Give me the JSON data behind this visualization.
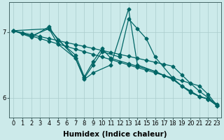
{
  "xlabel": "Humidex (Indice chaleur)",
  "ylabel": "",
  "bg_color": "#cceaea",
  "line_color": "#006666",
  "xlim": [
    -0.5,
    23.5
  ],
  "ylim": [
    5.7,
    7.45
  ],
  "yticks": [
    6,
    7
  ],
  "xticks": [
    0,
    1,
    2,
    3,
    4,
    5,
    6,
    7,
    8,
    9,
    10,
    11,
    12,
    13,
    14,
    15,
    16,
    17,
    18,
    19,
    20,
    21,
    22,
    23
  ],
  "lines": [
    {
      "x": [
        0,
        1,
        2,
        3,
        4,
        5,
        6,
        7,
        8,
        9,
        10,
        11,
        12,
        13,
        14,
        15,
        16,
        17,
        18,
        19,
        20,
        21,
        22,
        23
      ],
      "y": [
        7.02,
        6.98,
        6.94,
        6.9,
        6.86,
        6.82,
        6.78,
        6.74,
        6.7,
        6.66,
        6.62,
        6.58,
        6.54,
        6.5,
        6.46,
        6.42,
        6.38,
        6.34,
        6.3,
        6.26,
        6.22,
        6.18,
        6.05,
        5.88
      ]
    },
    {
      "x": [
        0,
        1,
        2,
        3,
        4,
        5,
        6,
        7,
        8,
        9,
        10,
        11,
        12,
        13,
        14,
        15,
        16,
        17,
        18,
        19,
        20,
        21,
        22,
        23
      ],
      "y": [
        7.02,
        6.99,
        6.96,
        6.93,
        6.9,
        6.87,
        6.84,
        6.81,
        6.78,
        6.75,
        6.72,
        6.69,
        6.66,
        6.63,
        6.6,
        6.57,
        6.54,
        6.51,
        6.48,
        6.35,
        6.22,
        6.1,
        6.0,
        5.9
      ]
    },
    {
      "x": [
        0,
        2,
        4,
        5,
        7,
        8,
        9,
        10,
        11,
        13,
        14,
        16,
        18,
        19,
        20,
        21,
        22,
        23
      ],
      "y": [
        7.02,
        6.92,
        7.08,
        6.88,
        6.65,
        6.32,
        6.55,
        6.75,
        6.6,
        6.52,
        6.48,
        6.4,
        6.28,
        6.18,
        6.1,
        6.02,
        5.98,
        5.88
      ]
    },
    {
      "x": [
        0,
        2,
        4,
        5,
        7,
        8,
        9,
        10,
        12,
        13,
        14,
        15,
        16,
        18,
        19,
        20,
        21,
        22,
        23
      ],
      "y": [
        7.02,
        6.94,
        7.05,
        6.82,
        6.6,
        6.3,
        6.5,
        6.7,
        6.62,
        7.2,
        7.05,
        6.9,
        6.62,
        6.3,
        6.18,
        6.1,
        6.02,
        5.98,
        5.88
      ]
    },
    {
      "x": [
        0,
        4,
        7,
        8,
        9,
        11,
        13,
        14,
        16,
        18,
        20,
        21,
        22,
        23
      ],
      "y": [
        7.02,
        7.05,
        6.6,
        6.28,
        6.38,
        6.5,
        7.35,
        6.5,
        6.4,
        6.28,
        6.08,
        6.02,
        5.98,
        5.88
      ]
    }
  ],
  "marker": "D",
  "markersize": 2.5,
  "linewidth": 0.9,
  "tick_fontsize": 6,
  "label_fontsize": 7.5,
  "grid_color": "#aacccc",
  "grid_linewidth": 0.5
}
